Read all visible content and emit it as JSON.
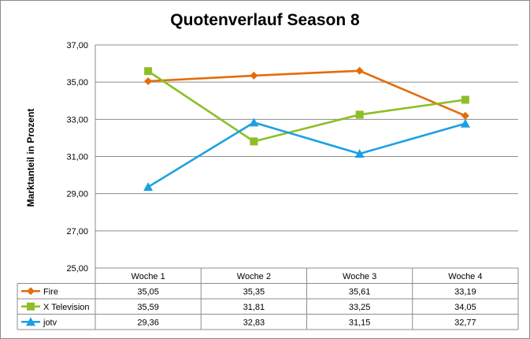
{
  "chart_data": {
    "type": "line",
    "title": "Quotenverlauf Season 8",
    "ylabel": "Marktanteil in Prozent",
    "xlabel": "",
    "ylim": [
      25,
      37
    ],
    "y_ticks": [
      "25,00",
      "27,00",
      "29,00",
      "31,00",
      "33,00",
      "35,00",
      "37,00"
    ],
    "categories": [
      "Woche 1",
      "Woche 2",
      "Woche 3",
      "Woche 4"
    ],
    "grid": true,
    "legend": "data-table",
    "series": [
      {
        "name": "Fire",
        "marker": "diamond",
        "color": "#e46c0a",
        "values": [
          35.05,
          35.35,
          35.61,
          33.19
        ],
        "labels": [
          "35,05",
          "35,35",
          "35,61",
          "33,19"
        ]
      },
      {
        "name": "X Television",
        "marker": "square",
        "color": "#8cbf26",
        "values": [
          35.59,
          31.81,
          33.25,
          34.05
        ],
        "labels": [
          "35,59",
          "31,81",
          "33,25",
          "34,05"
        ]
      },
      {
        "name": "jotv",
        "marker": "triangle",
        "color": "#1ba1e2",
        "values": [
          29.36,
          32.83,
          31.15,
          32.77
        ],
        "labels": [
          "29,36",
          "32,83",
          "31,15",
          "32,77"
        ]
      }
    ]
  }
}
